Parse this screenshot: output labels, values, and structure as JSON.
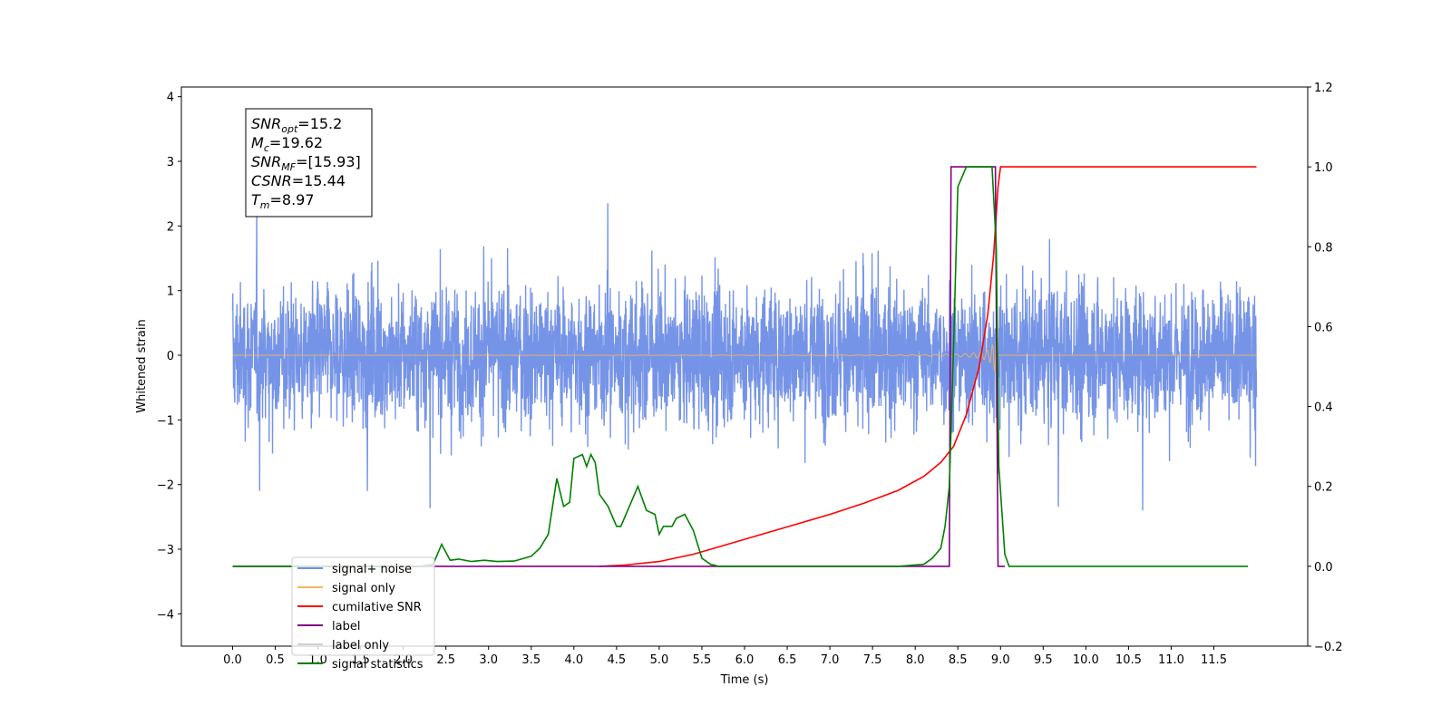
{
  "chart_data": {
    "type": "line",
    "title": "",
    "xlabel": "Time (s)",
    "ylabel": "Whitened strain",
    "xlim": [
      -0.6,
      12.6
    ],
    "ylim": [
      -4.5,
      4.15
    ],
    "y2lim": [
      -0.2,
      1.2
    ],
    "x_ticks": [
      "0.0",
      "0.5",
      "1.0",
      "1.5",
      "2.0",
      "2.5",
      "3.0",
      "3.5",
      "4.0",
      "4.5",
      "5.0",
      "5.5",
      "6.0",
      "6.5",
      "7.0",
      "7.5",
      "8.0",
      "8.5",
      "9.0",
      "9.5",
      "10.0",
      "10.5",
      "11.0",
      "11.5"
    ],
    "y_ticks": [
      "−4",
      "−3",
      "−2",
      "−1",
      "0",
      "1",
      "2",
      "3",
      "4"
    ],
    "y2_ticks": [
      "−0.2",
      "0.0",
      "0.2",
      "0.4",
      "0.6",
      "0.8",
      "1.0",
      "1.2"
    ],
    "annotation": [
      {
        "sym": "SNR",
        "sub": "opt",
        "text": "=15.2"
      },
      {
        "sym": "M",
        "sub": "c",
        "text": "=19.62"
      },
      {
        "sym": "SNR",
        "sub": "MF",
        "text": "=[15.93]"
      },
      {
        "sym": "CSNR",
        "sub": "",
        "text": "=15.44"
      },
      {
        "sym": "T",
        "sub": "m",
        "text": "=8.97"
      }
    ],
    "legend_position": "lower-left",
    "series": [
      {
        "name": "signal+ noise",
        "color": "#6f8ee6",
        "axis": "left",
        "kind": "noise",
        "x_range": [
          0,
          12
        ],
        "amplitude": 1.7
      },
      {
        "name": "signal only",
        "color": "#f5b85a",
        "axis": "left",
        "kind": "chirp",
        "x_range": [
          0,
          12
        ],
        "merger_time": 8.97
      },
      {
        "name": "cumilative SNR",
        "color": "#ff0000",
        "axis": "right",
        "x": [
          4.3,
          4.6,
          5.0,
          5.4,
          5.8,
          6.2,
          6.6,
          7.0,
          7.4,
          7.8,
          8.1,
          8.3,
          8.45,
          8.6,
          8.75,
          8.85,
          8.92,
          8.97,
          9.0,
          12.0
        ],
        "y": [
          0.0,
          0.003,
          0.012,
          0.03,
          0.055,
          0.08,
          0.105,
          0.13,
          0.158,
          0.19,
          0.225,
          0.26,
          0.3,
          0.38,
          0.5,
          0.63,
          0.78,
          0.95,
          1.0,
          1.0
        ]
      },
      {
        "name": "label",
        "color": "#800080",
        "axis": "right",
        "x": [
          0.0,
          8.4,
          8.42,
          8.94,
          8.97,
          9.05
        ],
        "y": [
          0,
          0,
          1,
          1,
          0.0,
          0.0
        ]
      },
      {
        "name": "label only",
        "color": "#d0d0d0",
        "axis": "right",
        "kind": "hidden"
      },
      {
        "name": "signal statistics",
        "color": "#008000",
        "axis": "right",
        "x": [
          0.0,
          2.2,
          2.35,
          2.45,
          2.55,
          2.65,
          2.8,
          2.95,
          3.1,
          3.3,
          3.5,
          3.6,
          3.7,
          3.8,
          3.88,
          3.95,
          4.0,
          4.1,
          4.15,
          4.2,
          4.25,
          4.3,
          4.4,
          4.5,
          4.55,
          4.65,
          4.75,
          4.85,
          4.95,
          5.0,
          5.05,
          5.15,
          5.2,
          5.3,
          5.4,
          5.5,
          5.6,
          5.7,
          6.0,
          7.8,
          8.1,
          8.2,
          8.3,
          8.35,
          8.4,
          8.45,
          8.5,
          8.6,
          8.7,
          8.9,
          8.95,
          8.98,
          9.05,
          9.1,
          11.9
        ],
        "y": [
          0,
          0,
          0.005,
          0.055,
          0.015,
          0.018,
          0.012,
          0.015,
          0.012,
          0.013,
          0.025,
          0.045,
          0.08,
          0.22,
          0.15,
          0.16,
          0.27,
          0.28,
          0.25,
          0.28,
          0.26,
          0.18,
          0.15,
          0.1,
          0.1,
          0.15,
          0.2,
          0.14,
          0.13,
          0.08,
          0.1,
          0.1,
          0.12,
          0.13,
          0.09,
          0.02,
          0.005,
          0.0,
          0.0,
          0.0,
          0.005,
          0.02,
          0.045,
          0.1,
          0.2,
          0.55,
          0.95,
          1.0,
          1.0,
          1.0,
          0.8,
          0.25,
          0.03,
          0.0,
          0.0
        ]
      }
    ]
  }
}
